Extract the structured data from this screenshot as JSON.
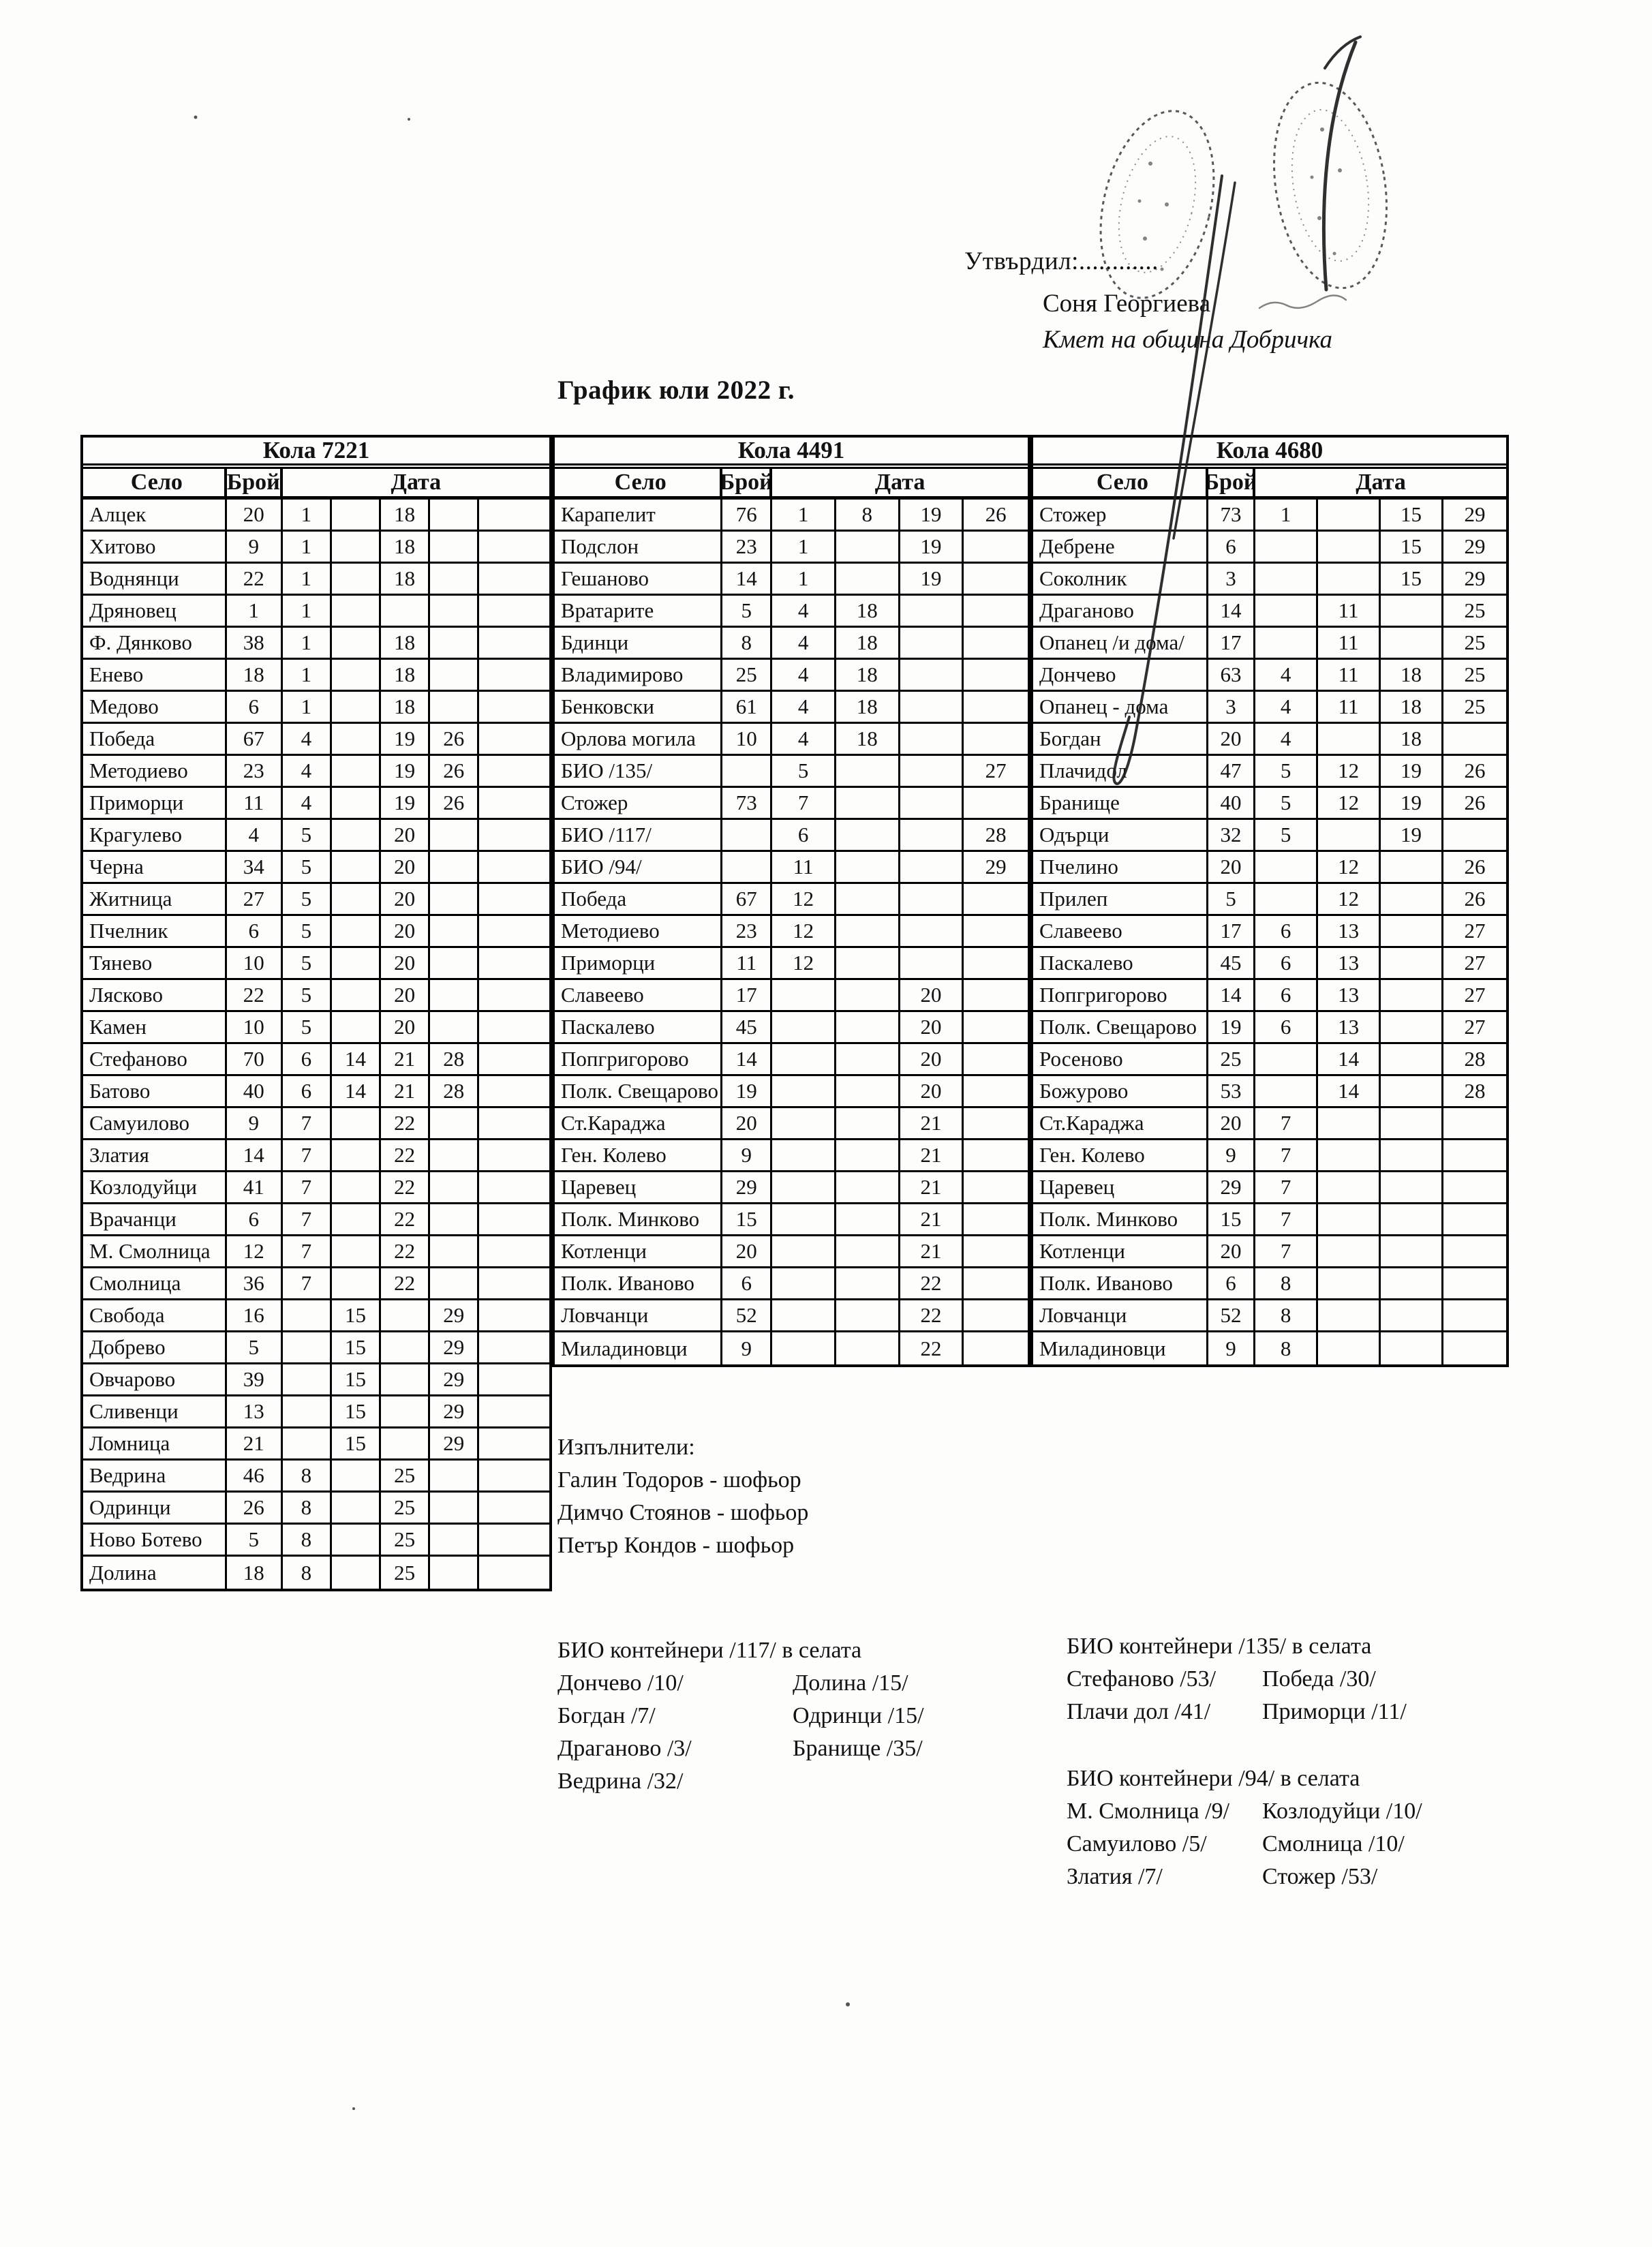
{
  "approval": {
    "label": "Утвърдил:............",
    "name": "Соня Георгиева",
    "title": "Кмет  на община Добричка"
  },
  "doc_title": "График юли 2022 г.",
  "columns": {
    "village": "Село",
    "count": "Брой",
    "date": "Дата"
  },
  "tables": [
    {
      "car": "Кола 7221",
      "rows": [
        {
          "s": "Алцек",
          "b": "20",
          "d": [
            "1",
            "",
            "18",
            ""
          ]
        },
        {
          "s": "Хитово",
          "b": "9",
          "d": [
            "1",
            "",
            "18",
            ""
          ]
        },
        {
          "s": "Воднянци",
          "b": "22",
          "d": [
            "1",
            "",
            "18",
            ""
          ]
        },
        {
          "s": "Дряновец",
          "b": "1",
          "d": [
            "1",
            "",
            "",
            ""
          ]
        },
        {
          "s": "Ф. Дянково",
          "b": "38",
          "d": [
            "1",
            "",
            "18",
            ""
          ]
        },
        {
          "s": "Енево",
          "b": "18",
          "d": [
            "1",
            "",
            "18",
            ""
          ]
        },
        {
          "s": "Медово",
          "b": "6",
          "d": [
            "1",
            "",
            "18",
            ""
          ]
        },
        {
          "s": "Победа",
          "b": "67",
          "d": [
            "4",
            "",
            "19",
            "26"
          ]
        },
        {
          "s": "Методиево",
          "b": "23",
          "d": [
            "4",
            "",
            "19",
            "26"
          ]
        },
        {
          "s": "Приморци",
          "b": "11",
          "d": [
            "4",
            "",
            "19",
            "26"
          ]
        },
        {
          "s": "Крагулево",
          "b": "4",
          "d": [
            "5",
            "",
            "20",
            ""
          ]
        },
        {
          "s": "Черна",
          "b": "34",
          "d": [
            "5",
            "",
            "20",
            ""
          ]
        },
        {
          "s": "Житница",
          "b": "27",
          "d": [
            "5",
            "",
            "20",
            ""
          ]
        },
        {
          "s": "Пчелник",
          "b": "6",
          "d": [
            "5",
            "",
            "20",
            ""
          ]
        },
        {
          "s": "Тянево",
          "b": "10",
          "d": [
            "5",
            "",
            "20",
            ""
          ]
        },
        {
          "s": "Лясково",
          "b": "22",
          "d": [
            "5",
            "",
            "20",
            ""
          ]
        },
        {
          "s": "Камен",
          "b": "10",
          "d": [
            "5",
            "",
            "20",
            ""
          ]
        },
        {
          "s": "Стефаново",
          "b": "70",
          "d": [
            "6",
            "14",
            "21",
            "28"
          ]
        },
        {
          "s": "Батово",
          "b": "40",
          "d": [
            "6",
            "14",
            "21",
            "28"
          ]
        },
        {
          "s": "Самуилово",
          "b": "9",
          "d": [
            "7",
            "",
            "22",
            ""
          ]
        },
        {
          "s": "Златия",
          "b": "14",
          "d": [
            "7",
            "",
            "22",
            ""
          ]
        },
        {
          "s": "Козлодуйци",
          "b": "41",
          "d": [
            "7",
            "",
            "22",
            ""
          ]
        },
        {
          "s": "Врачанци",
          "b": "6",
          "d": [
            "7",
            "",
            "22",
            ""
          ]
        },
        {
          "s": "М. Смолница",
          "b": "12",
          "d": [
            "7",
            "",
            "22",
            ""
          ]
        },
        {
          "s": "Смолница",
          "b": "36",
          "d": [
            "7",
            "",
            "22",
            ""
          ]
        },
        {
          "s": "Свобода",
          "b": "16",
          "d": [
            "",
            "15",
            "",
            "29"
          ]
        },
        {
          "s": "Добрево",
          "b": "5",
          "d": [
            "",
            "15",
            "",
            "29"
          ]
        },
        {
          "s": "Овчарово",
          "b": "39",
          "d": [
            "",
            "15",
            "",
            "29"
          ]
        },
        {
          "s": "Сливенци",
          "b": "13",
          "d": [
            "",
            "15",
            "",
            "29"
          ]
        },
        {
          "s": "Ломница",
          "b": "21",
          "d": [
            "",
            "15",
            "",
            "29"
          ]
        },
        {
          "s": "Ведрина",
          "b": "46",
          "d": [
            "8",
            "",
            "25",
            ""
          ]
        },
        {
          "s": "Одринци",
          "b": "26",
          "d": [
            "8",
            "",
            "25",
            ""
          ]
        },
        {
          "s": "Ново Ботево",
          "b": "5",
          "d": [
            "8",
            "",
            "25",
            ""
          ]
        },
        {
          "s": "Долина",
          "b": "18",
          "d": [
            "8",
            "",
            "25",
            ""
          ]
        }
      ]
    },
    {
      "car": "Кола 4491",
      "rows": [
        {
          "s": "Карапелит",
          "b": "76",
          "d": [
            "1",
            "8",
            "19",
            "26"
          ]
        },
        {
          "s": "Подслон",
          "b": "23",
          "d": [
            "1",
            "",
            "19",
            ""
          ]
        },
        {
          "s": "Гешаново",
          "b": "14",
          "d": [
            "1",
            "",
            "19",
            ""
          ]
        },
        {
          "s": "Вратарите",
          "b": "5",
          "d": [
            "4",
            "18",
            "",
            ""
          ]
        },
        {
          "s": "Бдинци",
          "b": "8",
          "d": [
            "4",
            "18",
            "",
            ""
          ]
        },
        {
          "s": "Владимирово",
          "b": "25",
          "d": [
            "4",
            "18",
            "",
            ""
          ]
        },
        {
          "s": "Бенковски",
          "b": "61",
          "d": [
            "4",
            "18",
            "",
            ""
          ]
        },
        {
          "s": "Орлова могила",
          "b": "10",
          "d": [
            "4",
            "18",
            "",
            ""
          ]
        },
        {
          "s": "БИО /135/",
          "b": "",
          "d": [
            "5",
            "",
            "",
            "27"
          ]
        },
        {
          "s": "Стожер",
          "b": "73",
          "d": [
            "7",
            "",
            "",
            ""
          ]
        },
        {
          "s": "БИО /117/",
          "b": "",
          "d": [
            "6",
            "",
            "",
            "28"
          ]
        },
        {
          "s": "БИО /94/",
          "b": "",
          "d": [
            "11",
            "",
            "",
            "29"
          ]
        },
        {
          "s": "Победа",
          "b": "67",
          "d": [
            "12",
            "",
            "",
            ""
          ]
        },
        {
          "s": "Методиево",
          "b": "23",
          "d": [
            "12",
            "",
            "",
            ""
          ]
        },
        {
          "s": "Приморци",
          "b": "11",
          "d": [
            "12",
            "",
            "",
            ""
          ]
        },
        {
          "s": "Славеево",
          "b": "17",
          "d": [
            "",
            "",
            "20",
            ""
          ]
        },
        {
          "s": "Паскалево",
          "b": "45",
          "d": [
            "",
            "",
            "20",
            ""
          ]
        },
        {
          "s": "Попгригорово",
          "b": "14",
          "d": [
            "",
            "",
            "20",
            ""
          ]
        },
        {
          "s": "Полк. Свещарово",
          "b": "19",
          "d": [
            "",
            "",
            "20",
            ""
          ]
        },
        {
          "s": "Ст.Караджа",
          "b": "20",
          "d": [
            "",
            "",
            "21",
            ""
          ]
        },
        {
          "s": "Ген. Колево",
          "b": "9",
          "d": [
            "",
            "",
            "21",
            ""
          ]
        },
        {
          "s": "Царевец",
          "b": "29",
          "d": [
            "",
            "",
            "21",
            ""
          ]
        },
        {
          "s": "Полк. Минково",
          "b": "15",
          "d": [
            "",
            "",
            "21",
            ""
          ]
        },
        {
          "s": "Котленци",
          "b": "20",
          "d": [
            "",
            "",
            "21",
            ""
          ]
        },
        {
          "s": "Полк. Иваново",
          "b": "6",
          "d": [
            "",
            "",
            "22",
            ""
          ]
        },
        {
          "s": "Ловчанци",
          "b": "52",
          "d": [
            "",
            "",
            "22",
            ""
          ]
        },
        {
          "s": "Миладиновци",
          "b": "9",
          "d": [
            "",
            "",
            "22",
            ""
          ]
        }
      ]
    },
    {
      "car": "Кола 4680",
      "rows": [
        {
          "s": "Стожер",
          "b": "73",
          "d": [
            "1",
            "",
            "15",
            "29"
          ]
        },
        {
          "s": "Дебрене",
          "b": "6",
          "d": [
            "",
            "",
            "15",
            "29"
          ]
        },
        {
          "s": "Соколник",
          "b": "3",
          "d": [
            "",
            "",
            "15",
            "29"
          ]
        },
        {
          "s": "Драганово",
          "b": "14",
          "d": [
            "",
            "11",
            "",
            "25"
          ]
        },
        {
          "s": "Опанец /и дома/",
          "b": "17",
          "d": [
            "",
            "11",
            "",
            "25"
          ]
        },
        {
          "s": "Дончево",
          "b": "63",
          "d": [
            "4",
            "11",
            "18",
            "25"
          ]
        },
        {
          "s": "Опанец - дома",
          "b": "3",
          "d": [
            "4",
            "11",
            "18",
            "25"
          ]
        },
        {
          "s": "Богдан",
          "b": "20",
          "d": [
            "4",
            "",
            "18",
            ""
          ]
        },
        {
          "s": "Плачидол",
          "b": "47",
          "d": [
            "5",
            "12",
            "19",
            "26"
          ]
        },
        {
          "s": "Бранище",
          "b": "40",
          "d": [
            "5",
            "12",
            "19",
            "26"
          ]
        },
        {
          "s": "Одърци",
          "b": "32",
          "d": [
            "5",
            "",
            "19",
            ""
          ]
        },
        {
          "s": "Пчелино",
          "b": "20",
          "d": [
            "",
            "12",
            "",
            "26"
          ]
        },
        {
          "s": "Прилеп",
          "b": "5",
          "d": [
            "",
            "12",
            "",
            "26"
          ]
        },
        {
          "s": "Славеево",
          "b": "17",
          "d": [
            "6",
            "13",
            "",
            "27"
          ]
        },
        {
          "s": "Паскалево",
          "b": "45",
          "d": [
            "6",
            "13",
            "",
            "27"
          ]
        },
        {
          "s": "Попгригорово",
          "b": "14",
          "d": [
            "6",
            "13",
            "",
            "27"
          ]
        },
        {
          "s": "Полк. Свещарово",
          "b": "19",
          "d": [
            "6",
            "13",
            "",
            "27"
          ]
        },
        {
          "s": "Росеново",
          "b": "25",
          "d": [
            "",
            "14",
            "",
            "28"
          ]
        },
        {
          "s": "Божурово",
          "b": "53",
          "d": [
            "",
            "14",
            "",
            "28"
          ]
        },
        {
          "s": "Ст.Караджа",
          "b": "20",
          "d": [
            "7",
            "",
            "",
            ""
          ]
        },
        {
          "s": "Ген. Колево",
          "b": "9",
          "d": [
            "7",
            "",
            "",
            ""
          ]
        },
        {
          "s": "Царевец",
          "b": "29",
          "d": [
            "7",
            "",
            "",
            ""
          ]
        },
        {
          "s": "Полк. Минково",
          "b": "15",
          "d": [
            "7",
            "",
            "",
            ""
          ]
        },
        {
          "s": "Котленци",
          "b": "20",
          "d": [
            "7",
            "",
            "",
            ""
          ]
        },
        {
          "s": "Полк. Иваново",
          "b": "6",
          "d": [
            "8",
            "",
            "",
            ""
          ]
        },
        {
          "s": "Ловчанци",
          "b": "52",
          "d": [
            "8",
            "",
            "",
            ""
          ]
        },
        {
          "s": "Миладиновци",
          "b": "9",
          "d": [
            "8",
            "",
            "",
            ""
          ]
        }
      ]
    }
  ],
  "executors": {
    "title": "Изпълнители:",
    "items": [
      "Галин Тодоров - шофьор",
      "Димчо Стоянов - шофьор",
      "Петър Кондов - шофьор"
    ]
  },
  "bio_sections": [
    {
      "title": "БИО контейнери /117/ в селата",
      "left": [
        "Дончево /10/",
        "Богдан /7/",
        "Драганово /3/",
        "Ведрина /32/"
      ],
      "right": [
        "Долина /15/",
        "Одринци /15/",
        "Бранище /35/",
        ""
      ]
    },
    {
      "title": "БИО контейнери /135/ в селата",
      "left": [
        "Стефаново /53/",
        "Плачи дол /41/"
      ],
      "right": [
        "Победа /30/",
        "Приморци /11/"
      ]
    },
    {
      "title": "БИО контейнери /94/ в селата",
      "left": [
        "М. Смолница /9/",
        "Самуилово /5/",
        "Златия /7/"
      ],
      "right": [
        "Козлодуйци /10/",
        "Смолница /10/",
        "Стожер /53/"
      ]
    }
  ]
}
